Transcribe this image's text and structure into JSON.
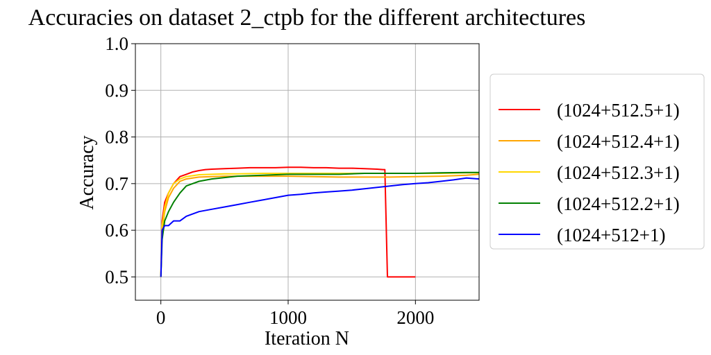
{
  "chart_data": {
    "type": "line",
    "title": "Accuracies on dataset 2_ctpb for the different architectures",
    "xlabel": "Iteration N",
    "ylabel": "Accuracy",
    "xlim": [
      -200,
      2500
    ],
    "ylim": [
      0.45,
      1.0
    ],
    "xticks": [
      0,
      1000,
      2000
    ],
    "xtick_labels": [
      "0",
      "1000",
      "2000"
    ],
    "yticks": [
      0.5,
      0.6,
      0.7,
      0.8,
      0.9,
      1.0
    ],
    "ytick_labels": [
      "0.5",
      "0.6",
      "0.7",
      "0.8",
      "0.9",
      "1.0"
    ],
    "grid": true,
    "legend_position": "right, outside plot",
    "series": [
      {
        "name": "(1024+512.5+1)",
        "color": "#ff0000",
        "x": [
          0,
          10,
          30,
          60,
          100,
          150,
          200,
          250,
          300,
          350,
          400,
          500,
          600,
          700,
          800,
          900,
          1000,
          1100,
          1200,
          1300,
          1400,
          1500,
          1600,
          1700,
          1745,
          1760,
          1780,
          1800,
          1900,
          2000
        ],
        "y": [
          0.5,
          0.62,
          0.66,
          0.68,
          0.7,
          0.715,
          0.72,
          0.725,
          0.728,
          0.73,
          0.731,
          0.732,
          0.733,
          0.734,
          0.734,
          0.734,
          0.735,
          0.735,
          0.734,
          0.734,
          0.733,
          0.733,
          0.732,
          0.731,
          0.73,
          0.73,
          0.5,
          0.5,
          0.5,
          0.5
        ]
      },
      {
        "name": "(1024+512.4+1)",
        "color": "#ffa500",
        "x": [
          0,
          10,
          30,
          60,
          100,
          150,
          200,
          250,
          300,
          400,
          500,
          600,
          800,
          1000,
          1200,
          1400,
          1600,
          1800,
          2000,
          2200,
          2400,
          2500
        ],
        "y": [
          0.5,
          0.6,
          0.64,
          0.67,
          0.69,
          0.705,
          0.71,
          0.712,
          0.714,
          0.715,
          0.716,
          0.716,
          0.716,
          0.716,
          0.715,
          0.714,
          0.714,
          0.714,
          0.715,
          0.716,
          0.718,
          0.72
        ]
      },
      {
        "name": "(1024+512.3+1)",
        "color": "#ffd700",
        "x": [
          0,
          10,
          30,
          60,
          100,
          150,
          200,
          250,
          300,
          400,
          500,
          600,
          800,
          1000,
          1200,
          1400,
          1600,
          1800,
          2000,
          2200,
          2400,
          2500
        ],
        "y": [
          0.5,
          0.61,
          0.65,
          0.68,
          0.7,
          0.71,
          0.715,
          0.717,
          0.719,
          0.72,
          0.721,
          0.721,
          0.722,
          0.722,
          0.722,
          0.722,
          0.722,
          0.722,
          0.722,
          0.722,
          0.723,
          0.723
        ]
      },
      {
        "name": "(1024+512.2+1)",
        "color": "#008000",
        "x": [
          0,
          10,
          30,
          60,
          100,
          150,
          200,
          250,
          300,
          400,
          500,
          600,
          800,
          1000,
          1200,
          1400,
          1600,
          1800,
          2000,
          2200,
          2400,
          2500
        ],
        "y": [
          0.5,
          0.58,
          0.62,
          0.64,
          0.66,
          0.68,
          0.695,
          0.7,
          0.705,
          0.71,
          0.713,
          0.716,
          0.718,
          0.72,
          0.72,
          0.72,
          0.722,
          0.722,
          0.722,
          0.723,
          0.724,
          0.724
        ]
      },
      {
        "name": "(1024+512+1)",
        "color": "#0000ff",
        "x": [
          0,
          10,
          30,
          60,
          100,
          150,
          200,
          300,
          400,
          500,
          600,
          700,
          800,
          900,
          1000,
          1100,
          1200,
          1300,
          1400,
          1500,
          1600,
          1700,
          1800,
          1900,
          2000,
          2100,
          2200,
          2300,
          2400,
          2500
        ],
        "y": [
          0.5,
          0.6,
          0.61,
          0.61,
          0.62,
          0.62,
          0.63,
          0.64,
          0.645,
          0.65,
          0.655,
          0.66,
          0.665,
          0.67,
          0.675,
          0.677,
          0.68,
          0.682,
          0.684,
          0.686,
          0.689,
          0.692,
          0.695,
          0.698,
          0.7,
          0.702,
          0.705,
          0.708,
          0.712,
          0.71
        ]
      }
    ]
  }
}
